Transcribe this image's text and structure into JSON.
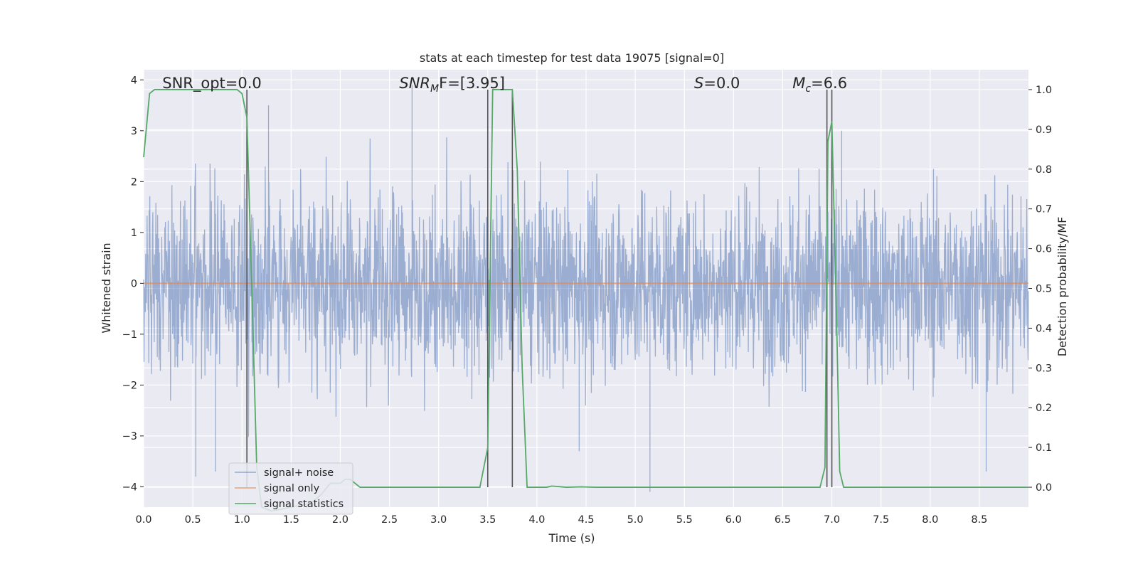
{
  "chart_data": {
    "type": "line",
    "title": "stats at each timestep for test data 19075 [signal=0]",
    "xlabel": "Time (s)",
    "ylabel": "Whitened strain",
    "y2label": "Detection probability/MF",
    "xlim": [
      0,
      9
    ],
    "ylim": [
      -4.4,
      4.2
    ],
    "y2lim": [
      -0.05,
      1.05
    ],
    "x_ticks": [
      "0.0",
      "0.5",
      "1.0",
      "1.5",
      "2.0",
      "2.5",
      "3.0",
      "3.5",
      "4.0",
      "4.5",
      "5.0",
      "5.5",
      "6.0",
      "6.5",
      "7.0",
      "7.5",
      "8.0",
      "8.5"
    ],
    "y_ticks": [
      "4",
      "3",
      "2",
      "1",
      "0",
      "−1",
      "−2",
      "−3",
      "−4"
    ],
    "y2_ticks": [
      "1.0",
      "0.9",
      "0.8",
      "0.7",
      "0.6",
      "0.5",
      "0.4",
      "0.3",
      "0.2",
      "0.1",
      "0.0"
    ],
    "grid": true,
    "legend_position": "lower-left",
    "annotations": [
      {
        "text": "SNR_opt=0.0",
        "x": 0.19
      },
      {
        "text_main": "SNR",
        "text_sub": "M",
        "text_rest": "F=[3.95]",
        "x": 2.6
      },
      {
        "text_main": "S",
        "text_rest": "=0.0",
        "x": 5.6
      },
      {
        "text_main": "M",
        "text_sub": "c",
        "text_rest": "=6.6",
        "x": 6.6
      }
    ],
    "vertical_lines_x": [
      1.05,
      3.5,
      3.75,
      6.95,
      7.0
    ],
    "series": [
      {
        "name": "signal+ noise",
        "color": "#4c72b0",
        "noise_envelope": {
          "base_amplitude": 1.6,
          "max_amplitude": 3.9
        },
        "spikes": [
          {
            "x": 2.73,
            "y": 3.9
          },
          {
            "x": 5.15,
            "y": -4.1
          },
          {
            "x": 0.53,
            "y": -3.8
          },
          {
            "x": 0.73,
            "y": -3.7
          },
          {
            "x": 1.27,
            "y": 3.5
          },
          {
            "x": 7.1,
            "y": 3.0
          },
          {
            "x": 8.57,
            "y": -3.7
          },
          {
            "x": 4.43,
            "y": -3.3
          }
        ]
      },
      {
        "name": "signal only",
        "color": "#dd8452",
        "x": [
          0,
          9
        ],
        "y": [
          0,
          0
        ]
      },
      {
        "name": "signal statistics",
        "color": "#55a868",
        "axis": "right",
        "x": [
          0.0,
          0.06,
          0.11,
          0.2,
          0.4,
          0.6,
          0.8,
          0.95,
          1.0,
          1.05,
          1.1,
          1.15,
          1.2,
          1.3,
          1.5,
          1.7,
          1.8,
          1.9,
          2.0,
          2.05,
          2.1,
          2.2,
          2.5,
          3.0,
          3.42,
          3.5,
          3.55,
          3.6,
          3.7,
          3.75,
          3.8,
          3.85,
          3.9,
          4.0,
          4.1,
          4.15,
          4.3,
          4.45,
          4.6,
          5.0,
          6.0,
          6.88,
          6.93,
          6.96,
          7.0,
          7.05,
          7.08,
          7.12,
          7.5,
          8.0,
          9.0
        ],
        "y": [
          0.83,
          0.99,
          1.0,
          1.0,
          1.0,
          1.0,
          1.0,
          1.0,
          0.99,
          0.93,
          0.5,
          0.05,
          -0.05,
          -0.06,
          -0.05,
          -0.04,
          -0.02,
          0.01,
          0.01,
          0.02,
          0.02,
          0.0,
          0.0,
          0.0,
          0.0,
          0.1,
          1.0,
          1.0,
          1.0,
          1.0,
          0.8,
          0.3,
          0.0,
          0.0,
          0.0,
          0.003,
          0.0,
          0.001,
          0.0,
          0.0,
          0.0,
          0.0,
          0.05,
          0.87,
          0.92,
          0.4,
          0.04,
          0.0,
          0.0,
          0.0,
          0.0
        ]
      }
    ]
  }
}
